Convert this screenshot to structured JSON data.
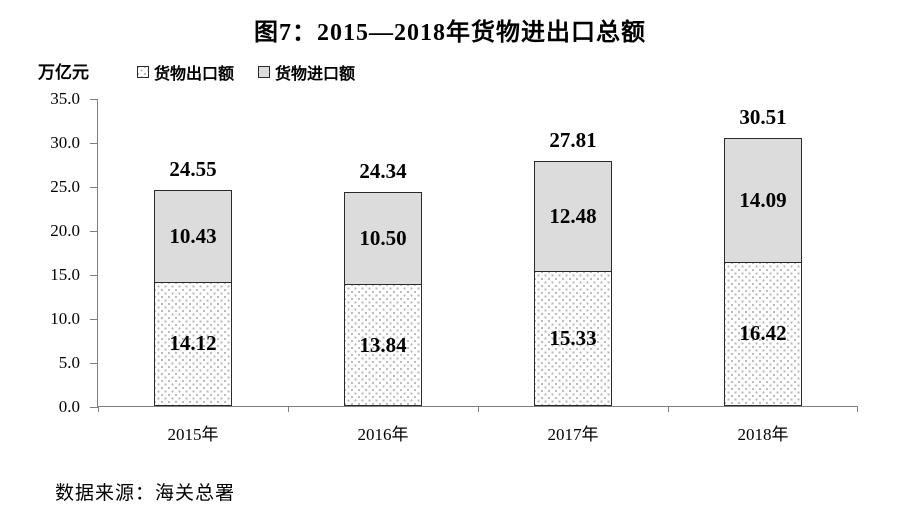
{
  "title": "图7：2015—2018年货物进出口总额",
  "unit_label": "万亿元",
  "source": "数据来源：海关总署",
  "legend": {
    "export_label": "货物出口额",
    "import_label": "货物进口额"
  },
  "chart_data": {
    "type": "bar",
    "stacked": true,
    "title": "图7：2015—2018年货物进出口总额",
    "ylabel": "万亿元",
    "xlabel": "",
    "categories": [
      "2015年",
      "2016年",
      "2017年",
      "2018年"
    ],
    "series": [
      {
        "name": "货物出口额",
        "values": [
          14.12,
          13.84,
          15.33,
          16.42
        ]
      },
      {
        "name": "货物进口额",
        "values": [
          10.43,
          10.5,
          12.48,
          14.09
        ]
      }
    ],
    "totals": [
      "24.55",
      "24.34",
      "27.81",
      "30.51"
    ],
    "ylim": [
      0,
      35
    ],
    "yticks": [
      "0.0",
      "5.0",
      "10.0",
      "15.0",
      "20.0",
      "25.0",
      "30.0",
      "35.0"
    ],
    "grid": false,
    "legend_position": "top-left"
  },
  "colors": {
    "import_fill": "#dcdcdc",
    "export_fill": "#ffffff",
    "export_dots": "#b9b9b9",
    "bar_border": "#2b2b2b",
    "axis": "#808080",
    "text": "#000000"
  }
}
